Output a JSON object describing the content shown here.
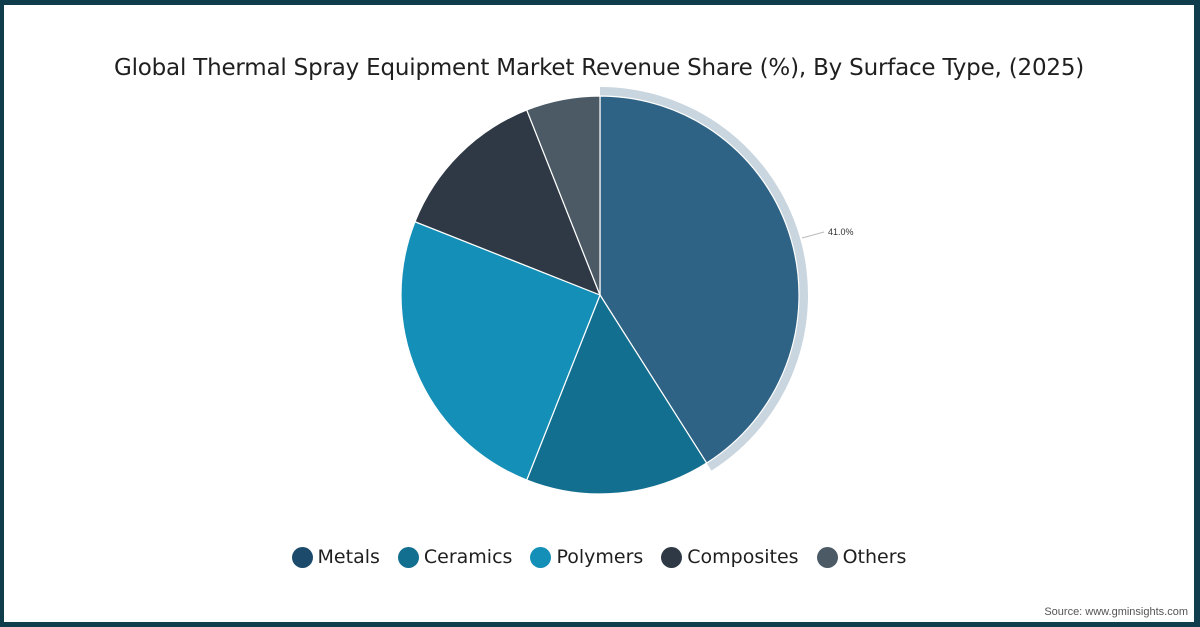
{
  "chart_data": {
    "type": "pie",
    "title": "Global Thermal Spray Equipment Market Revenue Share (%), By Surface Type, (2025)",
    "categories": [
      "Metals",
      "Ceramics",
      "Polymers",
      "Composites",
      "Others"
    ],
    "values": [
      41.0,
      15.0,
      25.0,
      13.0,
      6.0
    ],
    "colors": [
      "#2e6385",
      "#136f90",
      "#148fb7",
      "#2e3945",
      "#4b5a65"
    ],
    "data_labels": [
      {
        "category": "Metals",
        "text": "41.0%"
      }
    ],
    "highlighted": "Metals",
    "legend_position": "bottom",
    "start_angle_deg": 0,
    "direction": "clockwise"
  },
  "labels": {
    "metals_pct": "41.0%"
  },
  "legend": [
    {
      "label": "Metals",
      "color": "#1c4a6b"
    },
    {
      "label": "Ceramics",
      "color": "#136f90"
    },
    {
      "label": "Polymers",
      "color": "#148fb7"
    },
    {
      "label": "Composites",
      "color": "#2e3945"
    },
    {
      "label": "Others",
      "color": "#4b5a65"
    }
  ],
  "source": "Source: www.gminsights.com"
}
